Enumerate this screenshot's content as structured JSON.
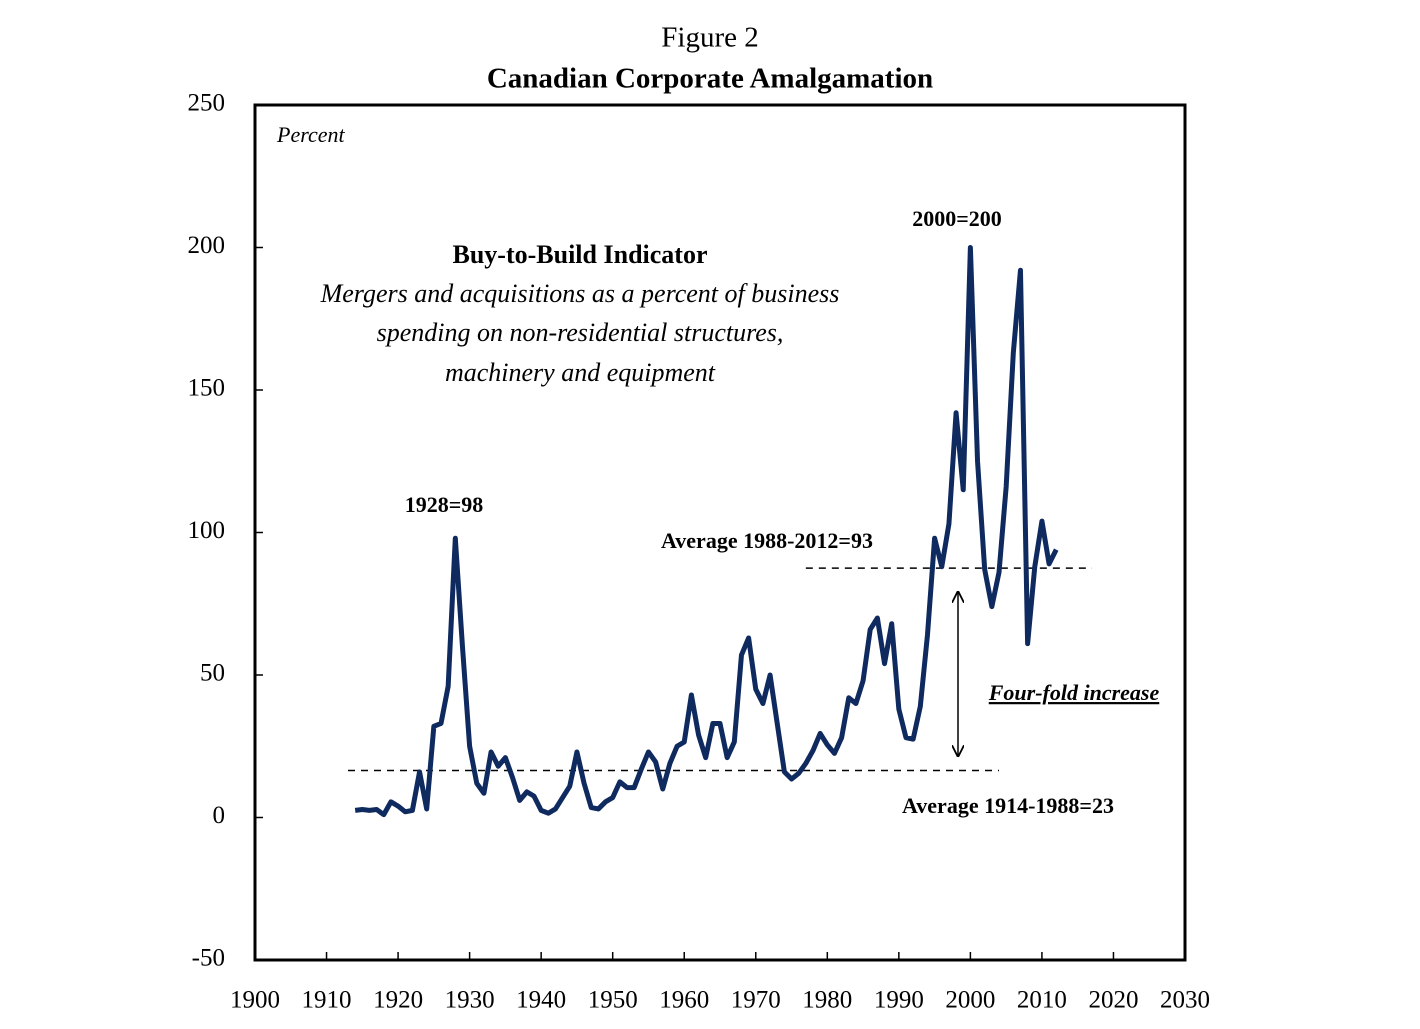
{
  "chart_data": {
    "type": "line",
    "title": "Figure 2",
    "subtitle": "Canadian Corporate Amalgamation",
    "ylabel": "Percent",
    "box_title": "Buy-to-Build Indicator",
    "box_lines": [
      "Mergers and acquisitions as  a percent of business",
      "spending on non-residential structures,",
      "machinery and equipment"
    ],
    "annotations": [
      "2000=200",
      "1928=98",
      "Average 1988-2012=93",
      "Average 1914-1988=23",
      "Four-fold increase"
    ],
    "x": [
      1914,
      1915,
      1916,
      1917,
      1918,
      1919,
      1920,
      1921,
      1922,
      1923,
      1924,
      1925,
      1926,
      1927,
      1928,
      1929,
      1930,
      1931,
      1932,
      1933,
      1934,
      1935,
      1936,
      1937,
      1938,
      1939,
      1940,
      1941,
      1942,
      1943,
      1944,
      1945,
      1946,
      1947,
      1948,
      1949,
      1950,
      1951,
      1952,
      1953,
      1954,
      1955,
      1956,
      1957,
      1958,
      1959,
      1960,
      1961,
      1962,
      1963,
      1964,
      1965,
      1966,
      1967,
      1968,
      1969,
      1970,
      1971,
      1972,
      1973,
      1974,
      1975,
      1976,
      1977,
      1978,
      1979,
      1980,
      1981,
      1982,
      1983,
      1984,
      1985,
      1986,
      1987,
      1988,
      1989,
      1990,
      1991,
      1992,
      1993,
      1994,
      1995,
      1996,
      1997,
      1998,
      1999,
      2000,
      2001,
      2002,
      2003,
      2004,
      2005,
      2006,
      2007,
      2008,
      2009,
      2010,
      2011,
      2012
    ],
    "series": [
      {
        "name": "Buy-to-Build Indicator",
        "color": "#0f2a5f",
        "values": [
          2.5,
          2.8,
          2.5,
          2.8,
          1,
          5.5,
          4,
          2,
          2.5,
          16,
          3,
          32,
          33,
          46,
          98,
          60,
          25,
          12,
          8.5,
          23,
          18,
          21,
          14,
          6,
          9,
          7.5,
          2.5,
          1.5,
          3,
          7,
          11,
          23,
          12,
          3.5,
          3,
          5.5,
          7,
          12.5,
          10.5,
          10.5,
          17,
          23,
          19.5,
          10,
          19,
          25,
          26.5,
          43,
          29,
          21,
          33,
          33,
          21,
          26.5,
          57,
          63,
          45,
          40,
          50,
          33,
          16,
          13.5,
          15.5,
          19,
          23.5,
          29.5,
          25.5,
          22.5,
          28,
          42,
          40,
          48,
          66,
          70,
          54,
          68,
          38,
          28,
          27.5,
          39,
          64,
          98,
          88,
          103,
          142,
          115,
          200,
          125,
          87,
          74,
          86,
          116,
          163,
          192,
          61,
          88,
          104,
          89,
          94
        ]
      }
    ],
    "reference_lines": [
      {
        "value": 16.5,
        "x": [
          1913,
          2004
        ]
      },
      {
        "value": 87.5,
        "x": [
          1977,
          2017
        ]
      }
    ],
    "xlim": [
      1900,
      2030
    ],
    "xticks": [
      1900,
      1910,
      1920,
      1930,
      1940,
      1950,
      1960,
      1970,
      1980,
      1990,
      2000,
      2010,
      2020,
      2030
    ],
    "ylim": [
      -50,
      250
    ],
    "yticks": [
      -50,
      0,
      50,
      100,
      150,
      200,
      250
    ]
  }
}
